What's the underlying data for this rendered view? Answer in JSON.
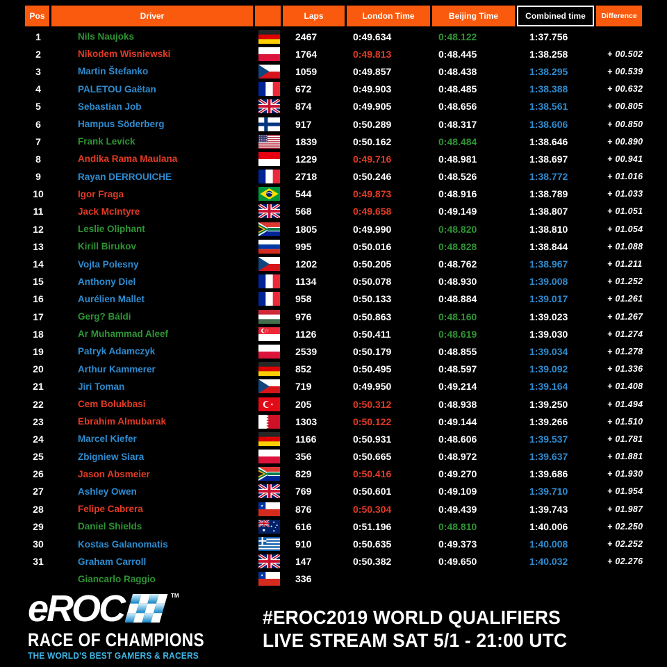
{
  "palette": {
    "orange": "#f95a0e",
    "green": "#2e9434",
    "red": "#e23b25",
    "blue": "#2e8cd0",
    "white": "#ffffff",
    "logo_blue": "#3fb6e4"
  },
  "header": {
    "pos": "Pos",
    "driver": "Driver",
    "flag": "",
    "laps": "Laps",
    "london": "London Time",
    "beijing": "Beijing Time",
    "combined": "Combined time",
    "difference": "Difference"
  },
  "rows": [
    {
      "pos": "1",
      "driver": "Nils Naujoks",
      "driver_color": "green",
      "country": "de",
      "laps": "2467",
      "london": "0:49.634",
      "london_color": "white",
      "beijing": "0:48.122",
      "beijing_color": "green",
      "combined": "1:37.756",
      "combined_color": "white",
      "difference": ""
    },
    {
      "pos": "2",
      "driver": "Nikodem Wisniewski",
      "driver_color": "red",
      "country": "pl",
      "laps": "1764",
      "london": "0:49.813",
      "london_color": "red",
      "beijing": "0:48.445",
      "beijing_color": "white",
      "combined": "1:38.258",
      "combined_color": "white",
      "difference": "+ 00.502"
    },
    {
      "pos": "3",
      "driver": "Martin Štefanko",
      "driver_color": "blue",
      "country": "cz",
      "laps": "1059",
      "london": "0:49.857",
      "london_color": "white",
      "beijing": "0:48.438",
      "beijing_color": "white",
      "combined": "1:38.295",
      "combined_color": "blue",
      "difference": "+ 00.539"
    },
    {
      "pos": "4",
      "driver": "PALETOU Gaëtan",
      "driver_color": "blue",
      "country": "fr",
      "laps": "672",
      "london": "0:49.903",
      "london_color": "white",
      "beijing": "0:48.485",
      "beijing_color": "white",
      "combined": "1:38.388",
      "combined_color": "blue",
      "difference": "+ 00.632"
    },
    {
      "pos": "5",
      "driver": "Sebastian Job",
      "driver_color": "blue",
      "country": "gb",
      "laps": "874",
      "london": "0:49.905",
      "london_color": "white",
      "beijing": "0:48.656",
      "beijing_color": "white",
      "combined": "1:38.561",
      "combined_color": "blue",
      "difference": "+ 00.805"
    },
    {
      "pos": "6",
      "driver": "Hampus Söderberg",
      "driver_color": "blue",
      "country": "fi",
      "laps": "917",
      "london": "0:50.289",
      "london_color": "white",
      "beijing": "0:48.317",
      "beijing_color": "white",
      "combined": "1:38.606",
      "combined_color": "blue",
      "difference": "+ 00.850"
    },
    {
      "pos": "7",
      "driver": "Frank Levick",
      "driver_color": "green",
      "country": "us",
      "laps": "1839",
      "london": "0:50.162",
      "london_color": "white",
      "beijing": "0:48.484",
      "beijing_color": "green",
      "combined": "1:38.646",
      "combined_color": "white",
      "difference": "+ 00.890"
    },
    {
      "pos": "8",
      "driver": "Andika Rama Maulana",
      "driver_color": "red",
      "country": "id",
      "laps": "1229",
      "london": "0:49.716",
      "london_color": "red",
      "beijing": "0:48.981",
      "beijing_color": "white",
      "combined": "1:38.697",
      "combined_color": "white",
      "difference": "+ 00.941"
    },
    {
      "pos": "9",
      "driver": "Rayan DERROUICHE",
      "driver_color": "blue",
      "country": "fr",
      "laps": "2718",
      "london": "0:50.246",
      "london_color": "white",
      "beijing": "0:48.526",
      "beijing_color": "white",
      "combined": "1:38.772",
      "combined_color": "blue",
      "difference": "+ 01.016"
    },
    {
      "pos": "10",
      "driver": "Igor Fraga",
      "driver_color": "red",
      "country": "br",
      "laps": "544",
      "london": "0:49.873",
      "london_color": "red",
      "beijing": "0:48.916",
      "beijing_color": "white",
      "combined": "1:38.789",
      "combined_color": "white",
      "difference": "+ 01.033"
    },
    {
      "pos": "11",
      "driver": "Jack McIntyre",
      "driver_color": "red",
      "country": "gb",
      "laps": "568",
      "london": "0:49.658",
      "london_color": "red",
      "beijing": "0:49.149",
      "beijing_color": "white",
      "combined": "1:38.807",
      "combined_color": "white",
      "difference": "+ 01.051"
    },
    {
      "pos": "12",
      "driver": "Leslie Oliphant",
      "driver_color": "green",
      "country": "za",
      "laps": "1805",
      "london": "0:49.990",
      "london_color": "white",
      "beijing": "0:48.820",
      "beijing_color": "green",
      "combined": "1:38.810",
      "combined_color": "white",
      "difference": "+ 01.054"
    },
    {
      "pos": "13",
      "driver": "Kirill Birukov",
      "driver_color": "green",
      "country": "ru",
      "laps": "995",
      "london": "0:50.016",
      "london_color": "white",
      "beijing": "0:48.828",
      "beijing_color": "green",
      "combined": "1:38.844",
      "combined_color": "white",
      "difference": "+ 01.088"
    },
    {
      "pos": "14",
      "driver": "Vojta Polesny",
      "driver_color": "blue",
      "country": "cz",
      "laps": "1202",
      "london": "0:50.205",
      "london_color": "white",
      "beijing": "0:48.762",
      "beijing_color": "white",
      "combined": "1:38.967",
      "combined_color": "blue",
      "difference": "+ 01.211"
    },
    {
      "pos": "15",
      "driver": "Anthony Diel",
      "driver_color": "blue",
      "country": "fr",
      "laps": "1134",
      "london": "0:50.078",
      "london_color": "white",
      "beijing": "0:48.930",
      "beijing_color": "white",
      "combined": "1:39.008",
      "combined_color": "blue",
      "difference": "+ 01.252"
    },
    {
      "pos": "16",
      "driver": "Aurélien Mallet",
      "driver_color": "blue",
      "country": "fr",
      "laps": "958",
      "london": "0:50.133",
      "london_color": "white",
      "beijing": "0:48.884",
      "beijing_color": "white",
      "combined": "1:39.017",
      "combined_color": "blue",
      "difference": "+ 01.261"
    },
    {
      "pos": "17",
      "driver": "Gerg? Báldi",
      "driver_color": "green",
      "country": "hu",
      "laps": "976",
      "london": "0:50.863",
      "london_color": "white",
      "beijing": "0:48.160",
      "beijing_color": "green",
      "combined": "1:39.023",
      "combined_color": "white",
      "difference": "+ 01.267"
    },
    {
      "pos": "18",
      "driver": "Ar Muhammad Aleef",
      "driver_color": "green",
      "country": "sg",
      "laps": "1126",
      "london": "0:50.411",
      "london_color": "white",
      "beijing": "0:48.619",
      "beijing_color": "green",
      "combined": "1:39.030",
      "combined_color": "white",
      "difference": "+ 01.274"
    },
    {
      "pos": "19",
      "driver": "Patryk Adamczyk",
      "driver_color": "blue",
      "country": "pl",
      "laps": "2539",
      "london": "0:50.179",
      "london_color": "white",
      "beijing": "0:48.855",
      "beijing_color": "white",
      "combined": "1:39.034",
      "combined_color": "blue",
      "difference": "+ 01.278"
    },
    {
      "pos": "20",
      "driver": "Arthur Kammerer",
      "driver_color": "blue",
      "country": "de",
      "laps": "852",
      "london": "0:50.495",
      "london_color": "white",
      "beijing": "0:48.597",
      "beijing_color": "white",
      "combined": "1:39.092",
      "combined_color": "blue",
      "difference": "+ 01.336"
    },
    {
      "pos": "21",
      "driver": "Jiri Toman",
      "driver_color": "blue",
      "country": "cz",
      "laps": "719",
      "london": "0:49.950",
      "london_color": "white",
      "beijing": "0:49.214",
      "beijing_color": "white",
      "combined": "1:39.164",
      "combined_color": "blue",
      "difference": "+ 01.408"
    },
    {
      "pos": "22",
      "driver": "Cem Bolukbasi",
      "driver_color": "red",
      "country": "tr",
      "laps": "205",
      "london": "0:50.312",
      "london_color": "red",
      "beijing": "0:48.938",
      "beijing_color": "white",
      "combined": "1:39.250",
      "combined_color": "white",
      "difference": "+ 01.494"
    },
    {
      "pos": "23",
      "driver": "Ebrahim Almubarak",
      "driver_color": "red",
      "country": "bh",
      "laps": "1303",
      "london": "0:50.122",
      "london_color": "red",
      "beijing": "0:49.144",
      "beijing_color": "white",
      "combined": "1:39.266",
      "combined_color": "white",
      "difference": "+ 01.510"
    },
    {
      "pos": "24",
      "driver": "Marcel Kiefer",
      "driver_color": "blue",
      "country": "de",
      "laps": "1166",
      "london": "0:50.931",
      "london_color": "white",
      "beijing": "0:48.606",
      "beijing_color": "white",
      "combined": "1:39.537",
      "combined_color": "blue",
      "difference": "+ 01.781"
    },
    {
      "pos": "25",
      "driver": "Zbigniew Siara",
      "driver_color": "blue",
      "country": "pl",
      "laps": "356",
      "london": "0:50.665",
      "london_color": "white",
      "beijing": "0:48.972",
      "beijing_color": "white",
      "combined": "1:39.637",
      "combined_color": "blue",
      "difference": "+ 01.881"
    },
    {
      "pos": "26",
      "driver": "Jason Absmeier",
      "driver_color": "red",
      "country": "za",
      "laps": "829",
      "london": "0:50.416",
      "london_color": "red",
      "beijing": "0:49.270",
      "beijing_color": "white",
      "combined": "1:39.686",
      "combined_color": "white",
      "difference": "+ 01.930"
    },
    {
      "pos": "27",
      "driver": "Ashley Owen",
      "driver_color": "blue",
      "country": "gb",
      "laps": "769",
      "london": "0:50.601",
      "london_color": "white",
      "beijing": "0:49.109",
      "beijing_color": "white",
      "combined": "1:39.710",
      "combined_color": "blue",
      "difference": "+ 01.954"
    },
    {
      "pos": "28",
      "driver": "Felipe Cabrera",
      "driver_color": "red",
      "country": "cl",
      "laps": "876",
      "london": "0:50.304",
      "london_color": "red",
      "beijing": "0:49.439",
      "beijing_color": "white",
      "combined": "1:39.743",
      "combined_color": "white",
      "difference": "+ 01.987"
    },
    {
      "pos": "29",
      "driver": "Daniel Shields",
      "driver_color": "green",
      "country": "au",
      "laps": "616",
      "london": "0:51.196",
      "london_color": "white",
      "beijing": "0:48.810",
      "beijing_color": "green",
      "combined": "1:40.006",
      "combined_color": "white",
      "difference": "+ 02.250"
    },
    {
      "pos": "30",
      "driver": "Kostas Galanomatis",
      "driver_color": "blue",
      "country": "gr",
      "laps": "910",
      "london": "0:50.635",
      "london_color": "white",
      "beijing": "0:49.373",
      "beijing_color": "white",
      "combined": "1:40.008",
      "combined_color": "blue",
      "difference": "+ 02.252"
    },
    {
      "pos": "31",
      "driver": "Graham Carroll",
      "driver_color": "blue",
      "country": "gb",
      "laps": "147",
      "london": "0:50.382",
      "london_color": "white",
      "beijing": "0:49.650",
      "beijing_color": "white",
      "combined": "1:40.032",
      "combined_color": "blue",
      "difference": "+ 02.276"
    },
    {
      "pos": "",
      "driver": "Giancarlo Raggio",
      "driver_color": "green",
      "country": "cl",
      "laps": "336",
      "london": "",
      "london_color": "white",
      "beijing": "",
      "beijing_color": "white",
      "combined": "",
      "combined_color": "white",
      "difference": ""
    }
  ],
  "footer": {
    "logo_main": "eROC",
    "tm": "TM",
    "logo_sub": "RACE OF CHAMPIONS",
    "tagline": "THE WORLD'S BEST GAMERS & RACERS",
    "promo_line1": "#EROC2019 WORLD QUALIFIERS",
    "promo_line2": "LIVE STREAM SAT 5/1 - 21:00 UTC"
  }
}
